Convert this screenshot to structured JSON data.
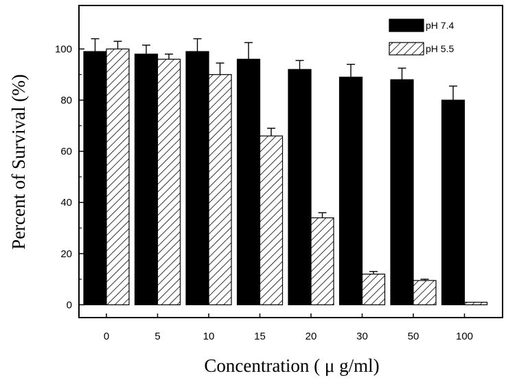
{
  "chart_data": {
    "type": "bar",
    "xlabel": "Concentration ( μ g/ml)",
    "ylabel": "Percent of Survival (%)",
    "ylim": [
      -5,
      117
    ],
    "yticks": [
      0,
      20,
      40,
      60,
      80,
      100
    ],
    "categories": [
      "0",
      "5",
      "10",
      "15",
      "20",
      "30",
      "50",
      "100"
    ],
    "legend_position": "top-right",
    "grid": false,
    "series": [
      {
        "name": "pH 7.4",
        "fill": "solid-black",
        "color": "#000000",
        "values": [
          99,
          98,
          99,
          96,
          92,
          89,
          88,
          80
        ],
        "errors": [
          5,
          3.5,
          5,
          6.5,
          3.5,
          5,
          4.5,
          5.5
        ]
      },
      {
        "name": "pH 5.5",
        "fill": "diagonal-hatch",
        "color": "#000000",
        "values": [
          100,
          96,
          90,
          66,
          34,
          12,
          9.5,
          1
        ],
        "errors": [
          3,
          2,
          4.5,
          3,
          2,
          1,
          0.5,
          0
        ]
      }
    ]
  }
}
